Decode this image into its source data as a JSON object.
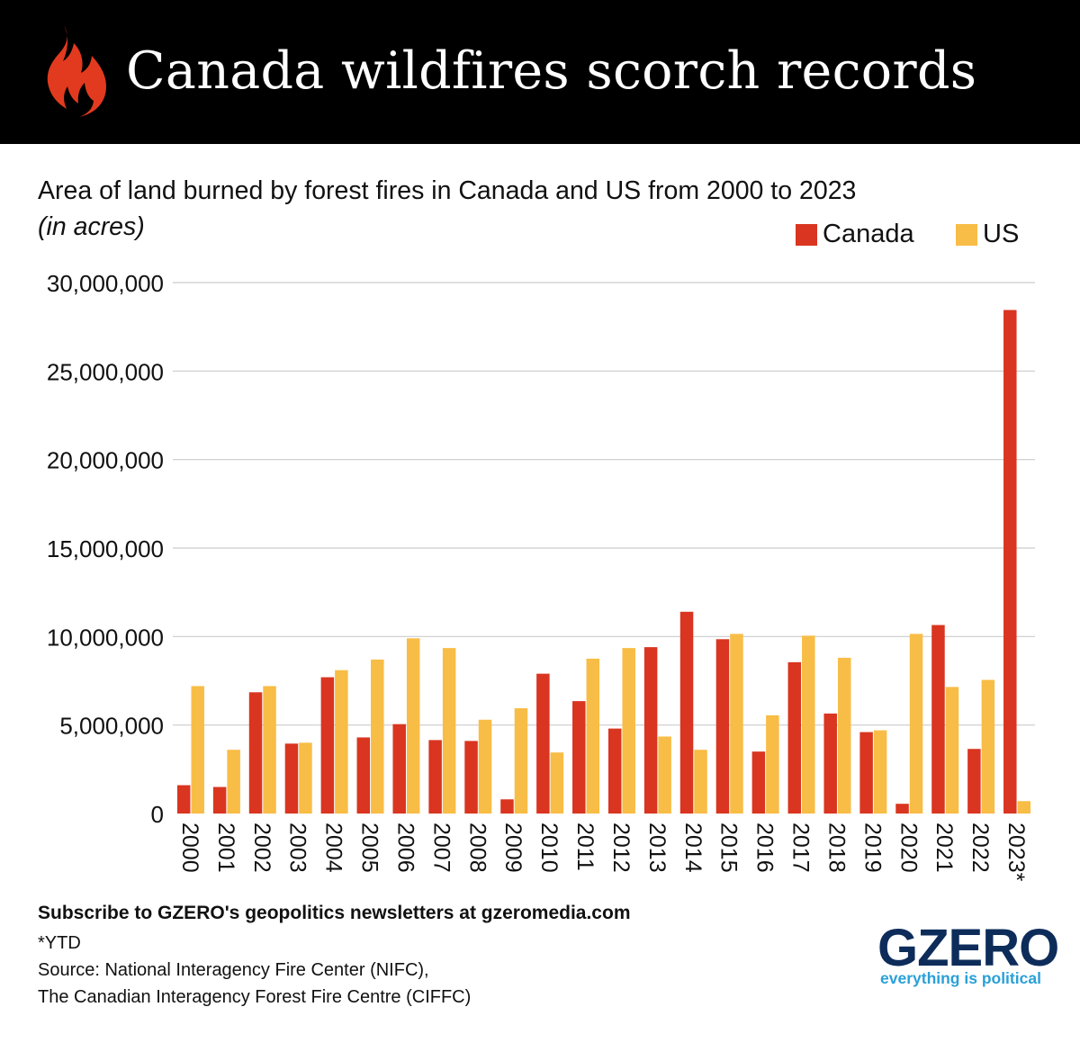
{
  "header": {
    "title": "Canada wildfires scorch records",
    "icon": "flame-icon",
    "background": "#000000",
    "icon_color": "#e23a1e"
  },
  "chart_data": {
    "type": "bar",
    "title": "Area of land burned by forest fires in Canada and US from 2000 to 2023",
    "ylabel": "(in acres)",
    "xlabel": "",
    "categories": [
      "2000",
      "2001",
      "2002",
      "2003",
      "2004",
      "2005",
      "2006",
      "2007",
      "2008",
      "2009",
      "2010",
      "2011",
      "2012",
      "2013",
      "2014",
      "2015",
      "2016",
      "2017",
      "2018",
      "2019",
      "2020",
      "2021",
      "2022",
      "2023*"
    ],
    "series": [
      {
        "name": "Canada",
        "color": "#d93520",
        "values": [
          1600000,
          1500000,
          6850000,
          3950000,
          7700000,
          4300000,
          5050000,
          4150000,
          4100000,
          800000,
          7900000,
          6350000,
          4800000,
          9400000,
          11400000,
          9850000,
          3500000,
          8550000,
          5650000,
          4600000,
          550000,
          10650000,
          3650000,
          28450000
        ]
      },
      {
        "name": "US",
        "color": "#f8bd46",
        "values": [
          7200000,
          3600000,
          7200000,
          4000000,
          8100000,
          8700000,
          9900000,
          9350000,
          5300000,
          5950000,
          3450000,
          8750000,
          9350000,
          4350000,
          3600000,
          10150000,
          5550000,
          10050000,
          8800000,
          4700000,
          10150000,
          7150000,
          7550000,
          700000
        ]
      }
    ],
    "ylim": [
      0,
      30000000
    ],
    "yticks": [
      "0",
      "5,000,000",
      "10,000,000",
      "15,000,000",
      "20,000,000",
      "25,000,000",
      "30,000,000"
    ],
    "grid": true,
    "gridline_color": "#cccccc",
    "legend_position": "top-right"
  },
  "footer": {
    "subscribe": "Subscribe to GZERO's geopolitics newsletters at gzeromedia.com",
    "note": "*YTD",
    "source_line1": "Source: National Interagency Fire Center (NIFC),",
    "source_line2": "The Canadian Interagency Forest Fire Centre (CIFFC)"
  },
  "logo": {
    "name": "GZERO",
    "tagline": "everything is political",
    "color": "#0d2c5a",
    "tagline_color": "#2aa0d8"
  }
}
